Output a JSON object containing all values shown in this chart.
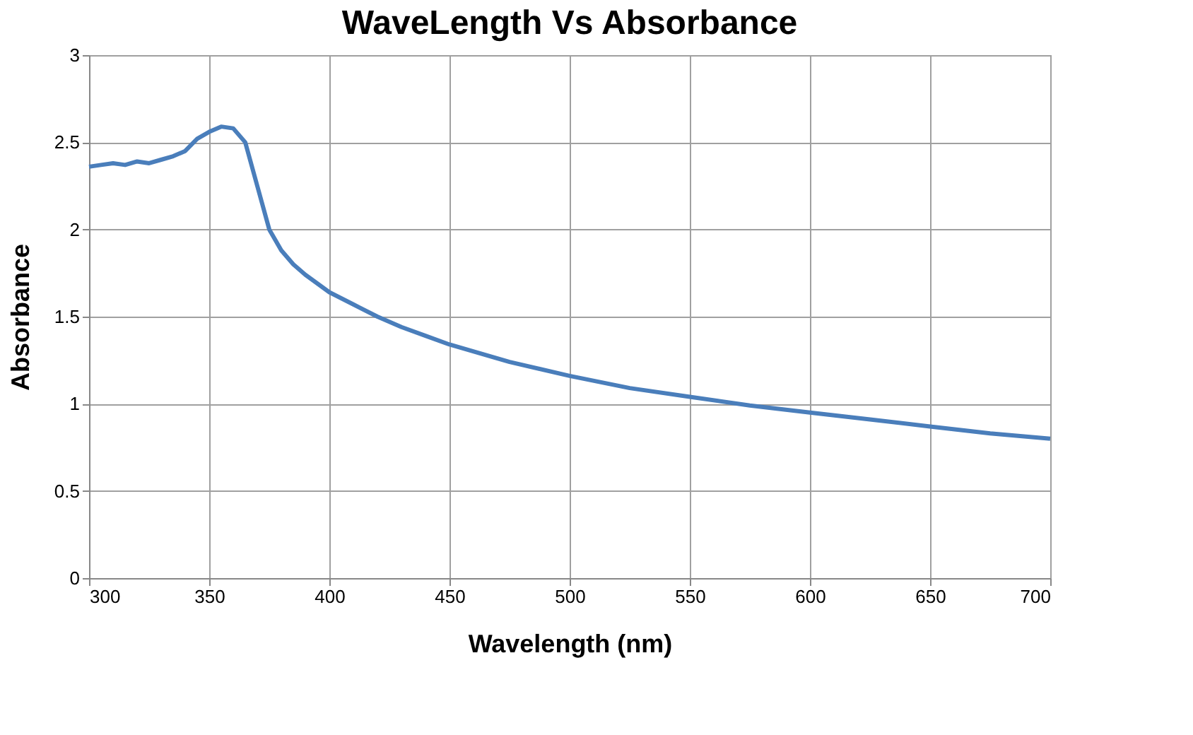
{
  "chart_data": {
    "type": "line",
    "title": "WaveLength Vs Absorbance",
    "xlabel": "Wavelength (nm)",
    "ylabel": "Absorbance",
    "x": [
      300,
      305,
      310,
      315,
      320,
      325,
      330,
      335,
      340,
      345,
      350,
      355,
      360,
      365,
      370,
      375,
      380,
      385,
      390,
      400,
      410,
      420,
      430,
      440,
      450,
      475,
      500,
      525,
      550,
      575,
      600,
      625,
      650,
      675,
      700
    ],
    "series": [
      {
        "color": "#4a7ebb",
        "values": [
          2.36,
          2.37,
          2.38,
          2.37,
          2.39,
          2.38,
          2.4,
          2.42,
          2.45,
          2.52,
          2.56,
          2.59,
          2.58,
          2.5,
          2.25,
          2.0,
          1.88,
          1.8,
          1.74,
          1.64,
          1.57,
          1.5,
          1.44,
          1.39,
          1.34,
          1.24,
          1.16,
          1.09,
          1.04,
          0.99,
          0.95,
          0.91,
          0.87,
          0.83,
          0.8
        ]
      }
    ],
    "xlim": [
      300,
      700
    ],
    "xticks": [
      300,
      350,
      400,
      450,
      500,
      550,
      600,
      650,
      700
    ],
    "ylim": [
      0,
      3
    ],
    "yticks": [
      0,
      0.5,
      1,
      1.5,
      2,
      2.5,
      3
    ],
    "grid": true,
    "legend": false,
    "marker": "none",
    "line_style": "solid"
  }
}
